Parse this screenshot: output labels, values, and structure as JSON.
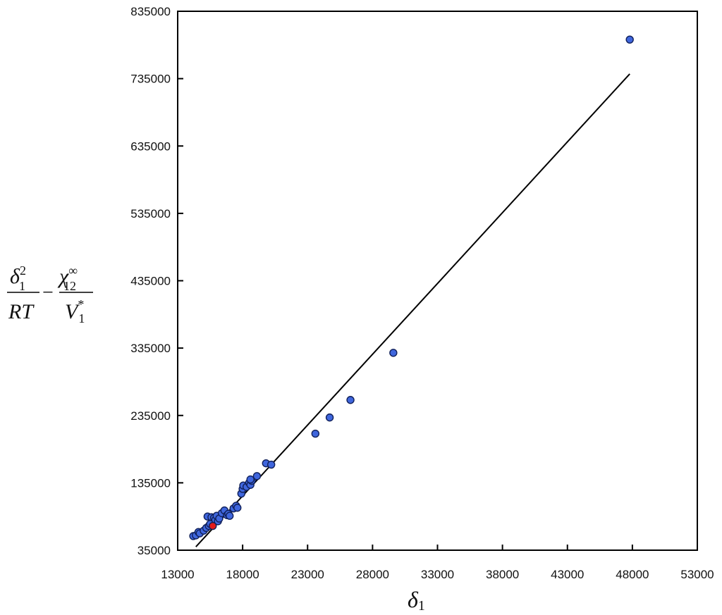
{
  "chart_data": {
    "type": "scatter",
    "title": "",
    "xlabel": {
      "symbol": "δ",
      "subscript": "1"
    },
    "ylabel": {
      "term1": {
        "numerator": "δ",
        "numerator_sub": "1",
        "numerator_sup": "2",
        "denominator": "RT"
      },
      "operator": "−",
      "term2": {
        "numerator": "χ",
        "numerator_sub": "12",
        "numerator_sup": "∞",
        "denominator": "V",
        "denominator_sub": "1",
        "denominator_sup": "*"
      }
    },
    "xlim": [
      13000,
      53000
    ],
    "ylim": [
      35000,
      835000
    ],
    "xticks": [
      13000,
      18000,
      23000,
      28000,
      33000,
      38000,
      43000,
      48000,
      53000
    ],
    "yticks": [
      35000,
      135000,
      235000,
      335000,
      435000,
      535000,
      635000,
      735000,
      835000
    ],
    "xtick_labels": [
      "13000",
      "18000",
      "23000",
      "28000",
      "33000",
      "38000",
      "43000",
      "48000",
      "53000"
    ],
    "ytick_labels": [
      "35000",
      "135000",
      "235000",
      "335000",
      "435000",
      "535000",
      "635000",
      "735000",
      "835000"
    ],
    "grid": false,
    "legend": "none",
    "colors": {
      "points": "#3f66dd",
      "highlight": "#e31b1b",
      "edge": "#10205a",
      "line": "#000000"
    },
    "series": [
      {
        "points": [
          [
            14200,
            56000
          ],
          [
            14400,
            57000
          ],
          [
            14600,
            62000
          ],
          [
            14700,
            60000
          ],
          [
            15000,
            64000
          ],
          [
            15200,
            68000
          ],
          [
            15400,
            71000
          ],
          [
            15300,
            85000
          ],
          [
            15500,
            74000
          ],
          [
            15600,
            84000
          ],
          [
            15800,
            83000
          ],
          [
            15900,
            80000
          ],
          [
            16000,
            86000
          ],
          [
            16100,
            78000
          ],
          [
            16200,
            82000
          ],
          [
            16400,
            90000
          ],
          [
            16600,
            94000
          ],
          [
            16800,
            87000
          ],
          [
            16900,
            89000
          ],
          [
            17000,
            86000
          ],
          [
            17300,
            97000
          ],
          [
            17500,
            101000
          ],
          [
            17600,
            98000
          ],
          [
            17900,
            119000
          ],
          [
            18000,
            126000
          ],
          [
            18050,
            131000
          ],
          [
            18300,
            129000
          ],
          [
            18500,
            135000
          ],
          [
            18600,
            132000
          ],
          [
            18700,
            138000
          ],
          [
            18600,
            140000
          ],
          [
            19100,
            145000
          ],
          [
            19800,
            164000
          ],
          [
            20200,
            162000
          ],
          [
            23600,
            208000
          ],
          [
            24700,
            232000
          ],
          [
            26300,
            258000
          ],
          [
            29600,
            328000
          ],
          [
            47800,
            793000
          ]
        ]
      },
      {
        "points": [
          [
            15700,
            71000
          ]
        ]
      }
    ],
    "fit_line": {
      "x": [
        14400,
        47800
      ],
      "y": [
        40000,
        742000
      ]
    }
  }
}
